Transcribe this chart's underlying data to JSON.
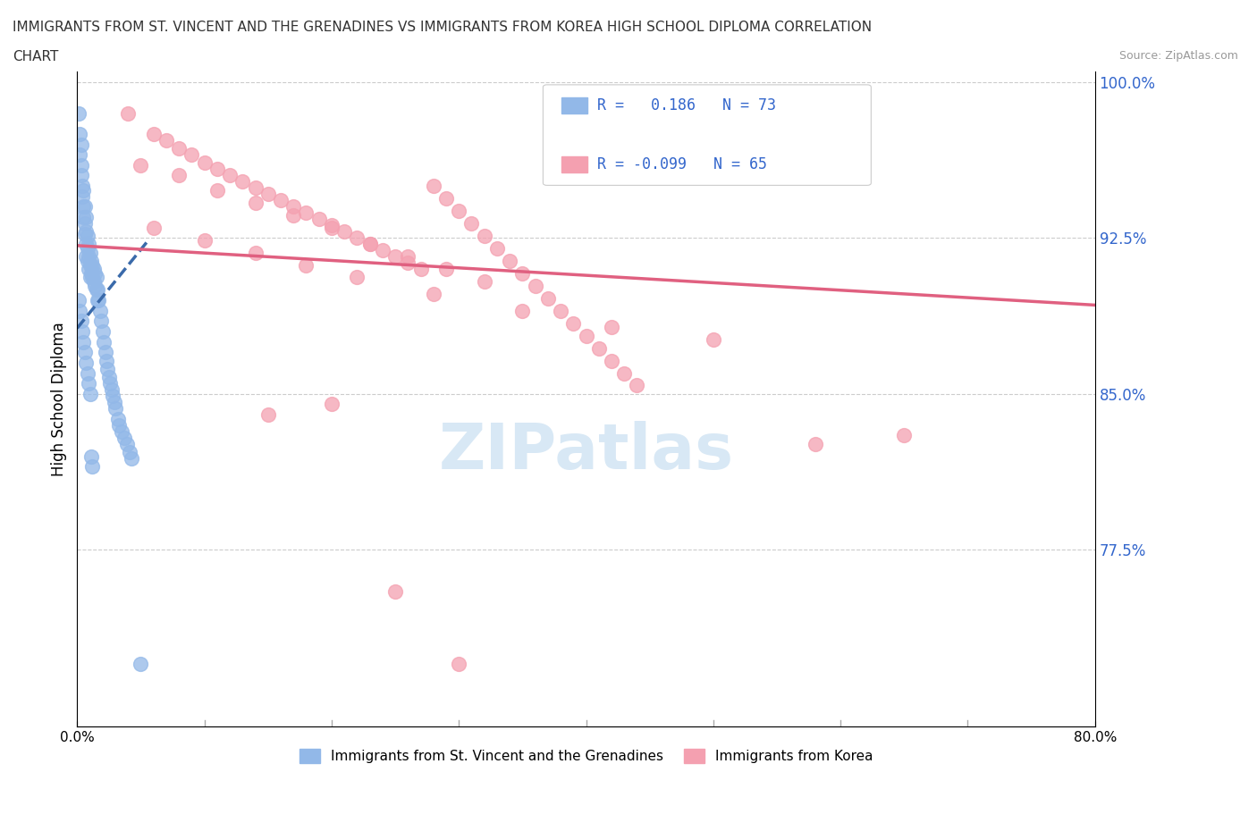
{
  "title_line1": "IMMIGRANTS FROM ST. VINCENT AND THE GRENADINES VS IMMIGRANTS FROM KOREA HIGH SCHOOL DIPLOMA CORRELATION",
  "title_line2": "CHART",
  "source": "Source: ZipAtlas.com",
  "xlabel_blue": "Immigrants from St. Vincent and the Grenadines",
  "xlabel_pink": "Immigrants from Korea",
  "ylabel": "High School Diploma",
  "xlim": [
    0.0,
    0.8
  ],
  "ylim": [
    0.69,
    1.005
  ],
  "xtick_positions": [
    0.0,
    0.8
  ],
  "xtick_labels": [
    "0.0%",
    "80.0%"
  ],
  "yticks_right": [
    0.775,
    0.85,
    0.925,
    1.0
  ],
  "ytick_right_labels": [
    "77.5%",
    "85.0%",
    "92.5%",
    "100.0%"
  ],
  "R_blue": 0.186,
  "N_blue": 73,
  "R_pink": -0.099,
  "N_pink": 65,
  "blue_color": "#92b8e8",
  "pink_color": "#f4a0b0",
  "blue_line_color": "#3a6aaa",
  "pink_line_color": "#e06080",
  "legend_R_color": "#3366cc",
  "watermark_color": "#d8e8f5",
  "blue_scatter_x": [
    0.001,
    0.002,
    0.002,
    0.003,
    0.003,
    0.003,
    0.004,
    0.004,
    0.005,
    0.005,
    0.005,
    0.006,
    0.006,
    0.006,
    0.007,
    0.007,
    0.007,
    0.007,
    0.008,
    0.008,
    0.008,
    0.009,
    0.009,
    0.009,
    0.01,
    0.01,
    0.01,
    0.011,
    0.011,
    0.012,
    0.012,
    0.013,
    0.013,
    0.014,
    0.014,
    0.015,
    0.015,
    0.016,
    0.016,
    0.017,
    0.018,
    0.019,
    0.02,
    0.021,
    0.022,
    0.023,
    0.024,
    0.025,
    0.026,
    0.027,
    0.028,
    0.029,
    0.03,
    0.032,
    0.033,
    0.035,
    0.037,
    0.039,
    0.041,
    0.043,
    0.001,
    0.002,
    0.003,
    0.004,
    0.005,
    0.006,
    0.007,
    0.008,
    0.009,
    0.01,
    0.011,
    0.012,
    0.05
  ],
  "blue_scatter_y": [
    0.985,
    0.975,
    0.965,
    0.96,
    0.955,
    0.97,
    0.95,
    0.945,
    0.94,
    0.948,
    0.935,
    0.94,
    0.932,
    0.927,
    0.935,
    0.928,
    0.922,
    0.916,
    0.926,
    0.92,
    0.914,
    0.922,
    0.916,
    0.91,
    0.918,
    0.912,
    0.906,
    0.914,
    0.908,
    0.912,
    0.906,
    0.91,
    0.904,
    0.908,
    0.902,
    0.906,
    0.9,
    0.9,
    0.895,
    0.895,
    0.89,
    0.885,
    0.88,
    0.875,
    0.87,
    0.866,
    0.862,
    0.858,
    0.855,
    0.852,
    0.849,
    0.846,
    0.843,
    0.838,
    0.835,
    0.832,
    0.829,
    0.826,
    0.822,
    0.819,
    0.895,
    0.89,
    0.885,
    0.88,
    0.875,
    0.87,
    0.865,
    0.86,
    0.855,
    0.85,
    0.82,
    0.815,
    0.72
  ],
  "pink_scatter_x": [
    0.04,
    0.06,
    0.07,
    0.08,
    0.09,
    0.1,
    0.11,
    0.12,
    0.13,
    0.14,
    0.15,
    0.16,
    0.17,
    0.18,
    0.19,
    0.2,
    0.21,
    0.22,
    0.23,
    0.24,
    0.25,
    0.26,
    0.27,
    0.28,
    0.29,
    0.3,
    0.31,
    0.32,
    0.33,
    0.34,
    0.35,
    0.36,
    0.37,
    0.38,
    0.39,
    0.4,
    0.41,
    0.42,
    0.43,
    0.44,
    0.05,
    0.08,
    0.11,
    0.14,
    0.17,
    0.2,
    0.23,
    0.26,
    0.29,
    0.32,
    0.06,
    0.1,
    0.14,
    0.18,
    0.22,
    0.28,
    0.35,
    0.42,
    0.5,
    0.58,
    0.65,
    0.2,
    0.15,
    0.25,
    0.3
  ],
  "pink_scatter_y": [
    0.985,
    0.975,
    0.972,
    0.968,
    0.965,
    0.961,
    0.958,
    0.955,
    0.952,
    0.949,
    0.946,
    0.943,
    0.94,
    0.937,
    0.934,
    0.931,
    0.928,
    0.925,
    0.922,
    0.919,
    0.916,
    0.913,
    0.91,
    0.95,
    0.944,
    0.938,
    0.932,
    0.926,
    0.92,
    0.914,
    0.908,
    0.902,
    0.896,
    0.89,
    0.884,
    0.878,
    0.872,
    0.866,
    0.86,
    0.854,
    0.96,
    0.955,
    0.948,
    0.942,
    0.936,
    0.93,
    0.922,
    0.916,
    0.91,
    0.904,
    0.93,
    0.924,
    0.918,
    0.912,
    0.906,
    0.898,
    0.89,
    0.882,
    0.876,
    0.826,
    0.83,
    0.845,
    0.84,
    0.755,
    0.72
  ]
}
